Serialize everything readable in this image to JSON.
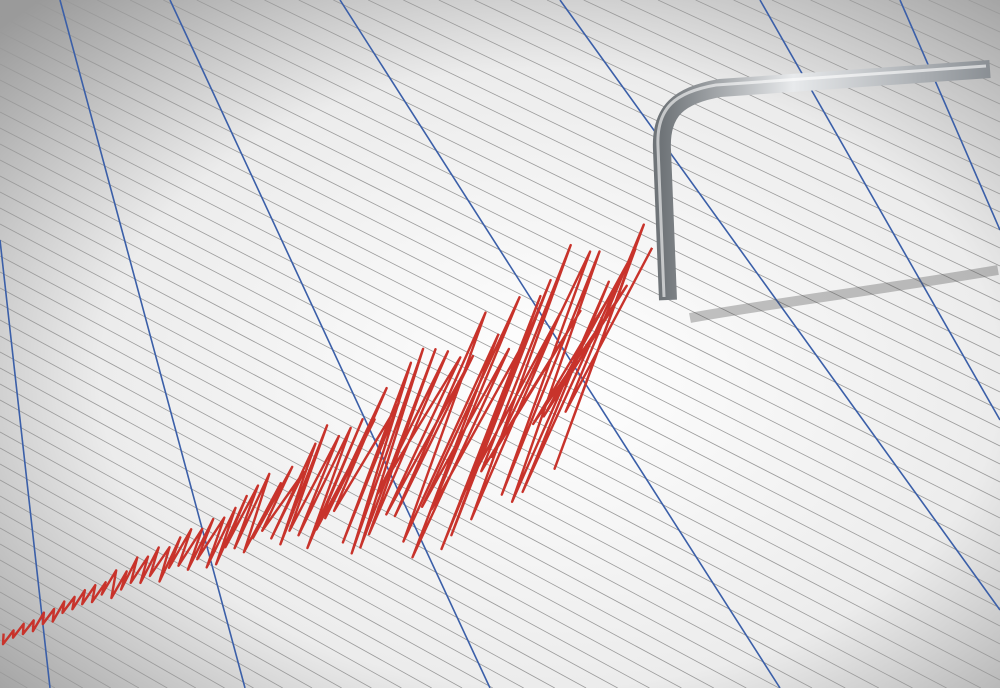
{
  "colors": {
    "paper": "#f3f3f3",
    "grid_line": "#9a9a9a",
    "grid_major": "#3b5fa8",
    "trace": "#c8332b",
    "stylus": "#b8bcc0",
    "shadow": "#555555"
  },
  "icons": [
    "seismograph-stylus",
    "seismic-trace"
  ]
}
